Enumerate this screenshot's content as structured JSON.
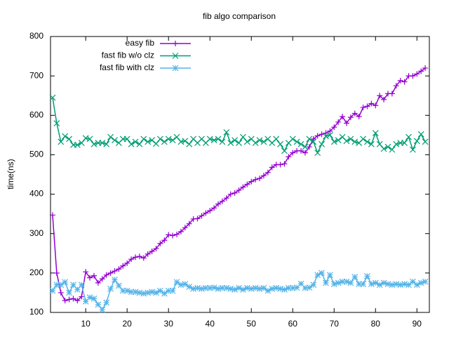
{
  "chart_data": {
    "type": "line",
    "title": "fib algo comparison",
    "ylabel": "time(ns)",
    "xlim": [
      1.5,
      93
    ],
    "ylim": [
      100,
      800
    ],
    "xticks": [
      10,
      20,
      30,
      40,
      50,
      60,
      70,
      80,
      90
    ],
    "yticks": [
      100,
      200,
      300,
      400,
      500,
      600,
      700,
      800
    ],
    "legend": "top-left",
    "x": [
      2,
      3,
      4,
      5,
      6,
      7,
      8,
      9,
      10,
      11,
      12,
      13,
      14,
      15,
      16,
      17,
      18,
      19,
      20,
      21,
      22,
      23,
      24,
      25,
      26,
      27,
      28,
      29,
      30,
      31,
      32,
      33,
      34,
      35,
      36,
      37,
      38,
      39,
      40,
      41,
      42,
      43,
      44,
      45,
      46,
      47,
      48,
      49,
      50,
      51,
      52,
      53,
      54,
      55,
      56,
      57,
      58,
      59,
      60,
      61,
      62,
      63,
      64,
      65,
      66,
      67,
      68,
      69,
      70,
      71,
      72,
      73,
      74,
      75,
      76,
      77,
      78,
      79,
      80,
      81,
      82,
      83,
      84,
      85,
      86,
      87,
      88,
      89,
      90,
      91,
      92
    ],
    "series": [
      {
        "name": "easy fib",
        "color": "#9400d3",
        "marker": "plus",
        "values": [
          347,
          200,
          150,
          130,
          133,
          135,
          130,
          140,
          203,
          188,
          193,
          175,
          185,
          195,
          200,
          205,
          210,
          218,
          225,
          235,
          240,
          242,
          238,
          248,
          255,
          262,
          275,
          283,
          297,
          295,
          298,
          305,
          315,
          325,
          337,
          338,
          345,
          352,
          358,
          365,
          375,
          382,
          390,
          400,
          403,
          410,
          418,
          425,
          432,
          437,
          440,
          447,
          455,
          468,
          475,
          475,
          477,
          495,
          505,
          510,
          510,
          505,
          520,
          540,
          548,
          552,
          555,
          560,
          570,
          583,
          597,
          580,
          595,
          605,
          597,
          620,
          623,
          630,
          625,
          650,
          640,
          655,
          655,
          675,
          688,
          685,
          700,
          700,
          705,
          712,
          720
        ]
      },
      {
        "name": "fast fib w/o clz",
        "color": "#009e73",
        "marker": "cross",
        "values": [
          645,
          580,
          533,
          547,
          540,
          525,
          525,
          530,
          542,
          540,
          527,
          530,
          530,
          527,
          545,
          537,
          530,
          540,
          540,
          527,
          533,
          527,
          540,
          533,
          537,
          528,
          540,
          533,
          540,
          537,
          545,
          533,
          535,
          527,
          540,
          530,
          540,
          530,
          540,
          537,
          540,
          533,
          557,
          530,
          537,
          530,
          545,
          533,
          540,
          530,
          537,
          533,
          540,
          530,
          540,
          527,
          510,
          530,
          540,
          533,
          527,
          520,
          540,
          533,
          505,
          527,
          547,
          550,
          533,
          537,
          545,
          535,
          540,
          533,
          530,
          540,
          533,
          527,
          555,
          527,
          515,
          520,
          513,
          527,
          530,
          530,
          545,
          513,
          535,
          552,
          533
        ]
      },
      {
        "name": "fast fib with clz",
        "color": "#56b4e9",
        "marker": "star",
        "values": [
          155,
          170,
          170,
          177,
          150,
          170,
          158,
          170,
          128,
          138,
          135,
          120,
          107,
          125,
          160,
          183,
          168,
          155,
          155,
          152,
          152,
          150,
          148,
          150,
          152,
          150,
          155,
          148,
          155,
          155,
          177,
          170,
          172,
          165,
          160,
          162,
          160,
          162,
          162,
          163,
          160,
          162,
          162,
          160,
          158,
          162,
          158,
          162,
          160,
          162,
          160,
          162,
          155,
          160,
          162,
          160,
          158,
          162,
          162,
          163,
          173,
          162,
          163,
          170,
          195,
          200,
          175,
          195,
          172,
          175,
          178,
          178,
          175,
          190,
          172,
          172,
          192,
          172,
          175,
          170,
          175,
          172,
          170,
          172,
          170,
          172,
          170,
          178,
          170,
          175,
          178
        ]
      }
    ]
  }
}
